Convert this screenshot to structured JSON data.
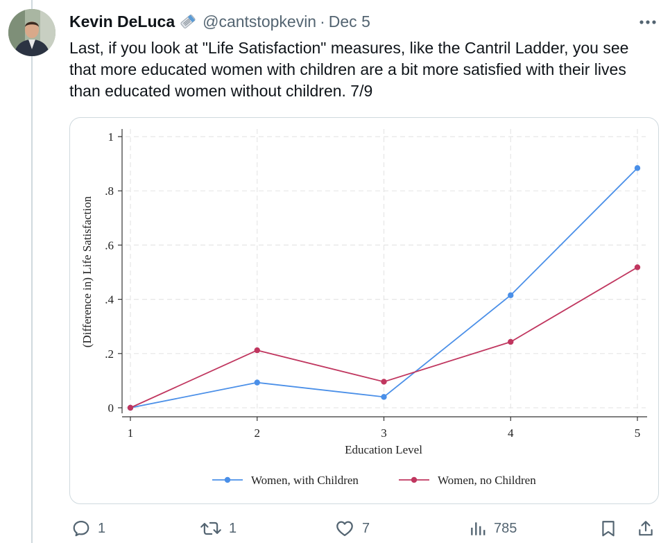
{
  "tweet": {
    "author_name": "Kevin DeLuca",
    "author_badge_icon": "newspaper-emoji-icon",
    "handle": "@cantstopkevin",
    "separator": "·",
    "date": "Dec 5",
    "text": "Last, if you look at \"Life Satisfaction\" measures, like the Cantril Ladder, you see that more educated women with children are a bit more satisfied with their lives than educated women without children. 7/9"
  },
  "actions": {
    "replies": "1",
    "retweets": "1",
    "likes": "7",
    "views": "785"
  },
  "chart_data": {
    "type": "line",
    "xlabel": "Education Level",
    "ylabel": "(Difference in) Life Satisfaction",
    "x": [
      1,
      2,
      3,
      4,
      5
    ],
    "x_tick_labels": [
      "1",
      "2",
      "3",
      "4",
      "5"
    ],
    "y_tick_values": [
      0,
      0.2,
      0.4,
      0.6,
      0.8,
      1
    ],
    "y_tick_labels": [
      "0",
      ".2",
      ".4",
      ".6",
      ".8",
      "1"
    ],
    "xlim": [
      1,
      5
    ],
    "ylim": [
      0,
      1
    ],
    "grid": true,
    "legend_position": "bottom",
    "series": [
      {
        "name": "Women, with Children",
        "color": "#4a8fe8",
        "values": [
          0,
          0.093,
          0.04,
          0.415,
          0.884
        ]
      },
      {
        "name": "Women, no Children",
        "color": "#c0365f",
        "values": [
          0,
          0.212,
          0.096,
          0.243,
          0.518
        ]
      }
    ]
  }
}
